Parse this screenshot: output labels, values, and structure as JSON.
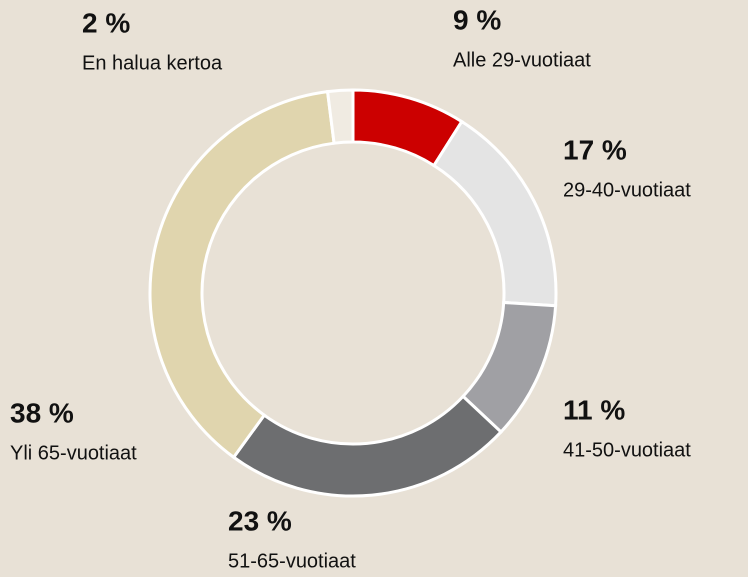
{
  "chart_data": {
    "type": "donut",
    "categories": [
      "Alle 29-vuotiaat",
      "29-40-vuotiaat",
      "41-50-vuotiaat",
      "51-65-vuotiaat",
      "Yli 65-vuotiaat",
      "En halua kertoa"
    ],
    "values": [
      9,
      17,
      11,
      23,
      38,
      2
    ],
    "value_labels": [
      "9 %",
      "17 %",
      "11 %",
      "23 %",
      "38 %",
      "2 %"
    ],
    "colors": [
      "#cc0000",
      "#e4e4e4",
      "#a0a0a4",
      "#6d6e70",
      "#e0d5ae",
      "#f0ebe2"
    ]
  }
}
